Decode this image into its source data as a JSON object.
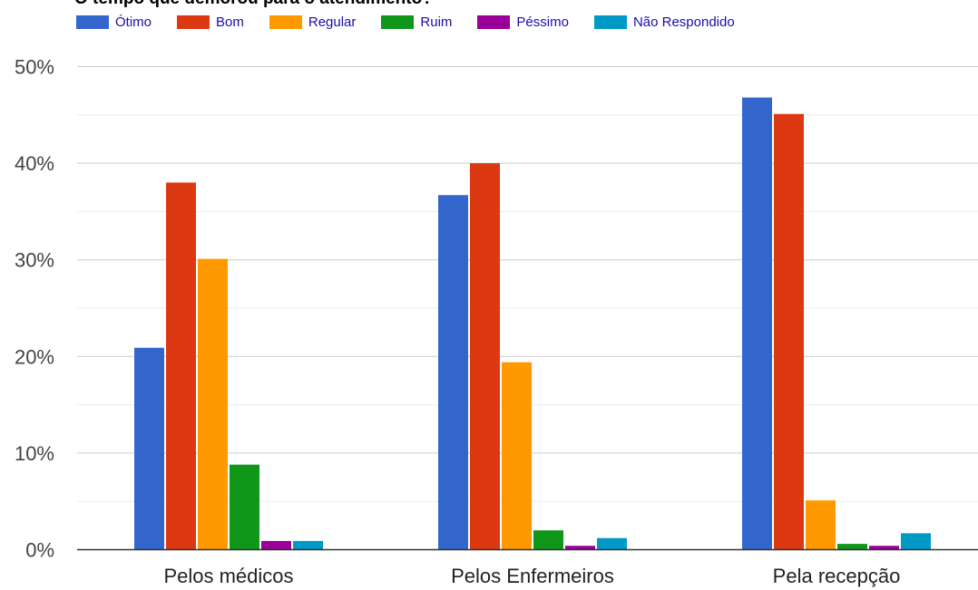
{
  "chart_data": {
    "type": "bar",
    "title": "O tempo que demorou para o atendimento?",
    "categories": [
      "Pelos médicos",
      "Pelos Enfermeiros",
      "Pela recepção"
    ],
    "series": [
      {
        "name": "Ótimo",
        "color": "#3366cc",
        "values": [
          20.9,
          36.7,
          46.8
        ]
      },
      {
        "name": "Bom",
        "color": "#dc3912",
        "values": [
          38.0,
          40.0,
          45.1
        ]
      },
      {
        "name": "Regular",
        "color": "#ff9900",
        "values": [
          30.1,
          19.4,
          5.1
        ]
      },
      {
        "name": "Ruim",
        "color": "#109618",
        "values": [
          8.8,
          2.0,
          0.6
        ]
      },
      {
        "name": "Péssimo",
        "color": "#990099",
        "values": [
          0.9,
          0.4,
          0.4
        ]
      },
      {
        "name": "Não Respondido",
        "color": "#0099c6",
        "values": [
          0.9,
          1.2,
          1.7
        ]
      }
    ],
    "yticks": [
      "0%",
      "10%",
      "20%",
      "30%",
      "40%",
      "50%"
    ],
    "ylim": [
      0,
      50
    ],
    "xlabel": "",
    "ylabel": "",
    "grid": true,
    "legend_position": "top"
  }
}
